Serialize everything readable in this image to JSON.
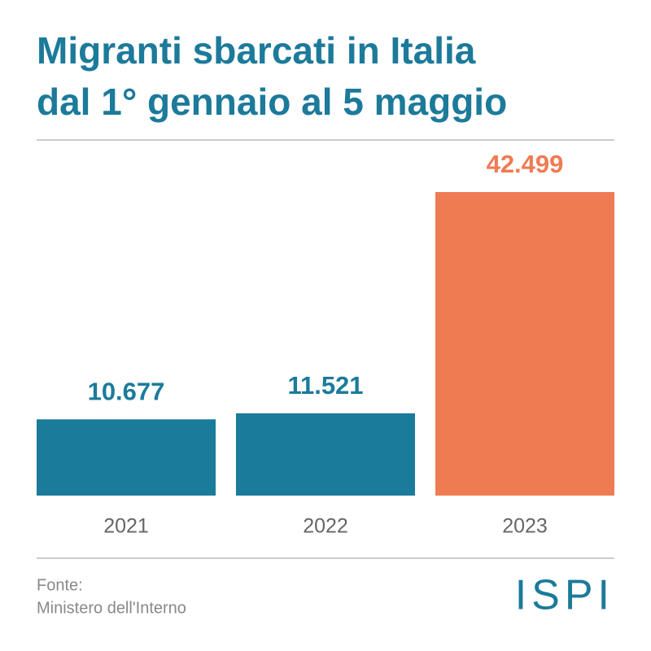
{
  "chart_data": {
    "type": "bar",
    "title": [
      "Migranti sbarcati in Italia",
      "dal 1° gennaio al 5 maggio"
    ],
    "categories": [
      "2021",
      "2022",
      "2023"
    ],
    "values": [
      10677,
      11521,
      42499
    ],
    "value_labels": [
      "10.677",
      "11.521",
      "42.499"
    ],
    "colors": [
      "#1b7b9b",
      "#1b7b9b",
      "#ef7b53"
    ],
    "source": [
      "Fonte:",
      "Ministero dell'Interno"
    ],
    "logo": "ISPI"
  }
}
